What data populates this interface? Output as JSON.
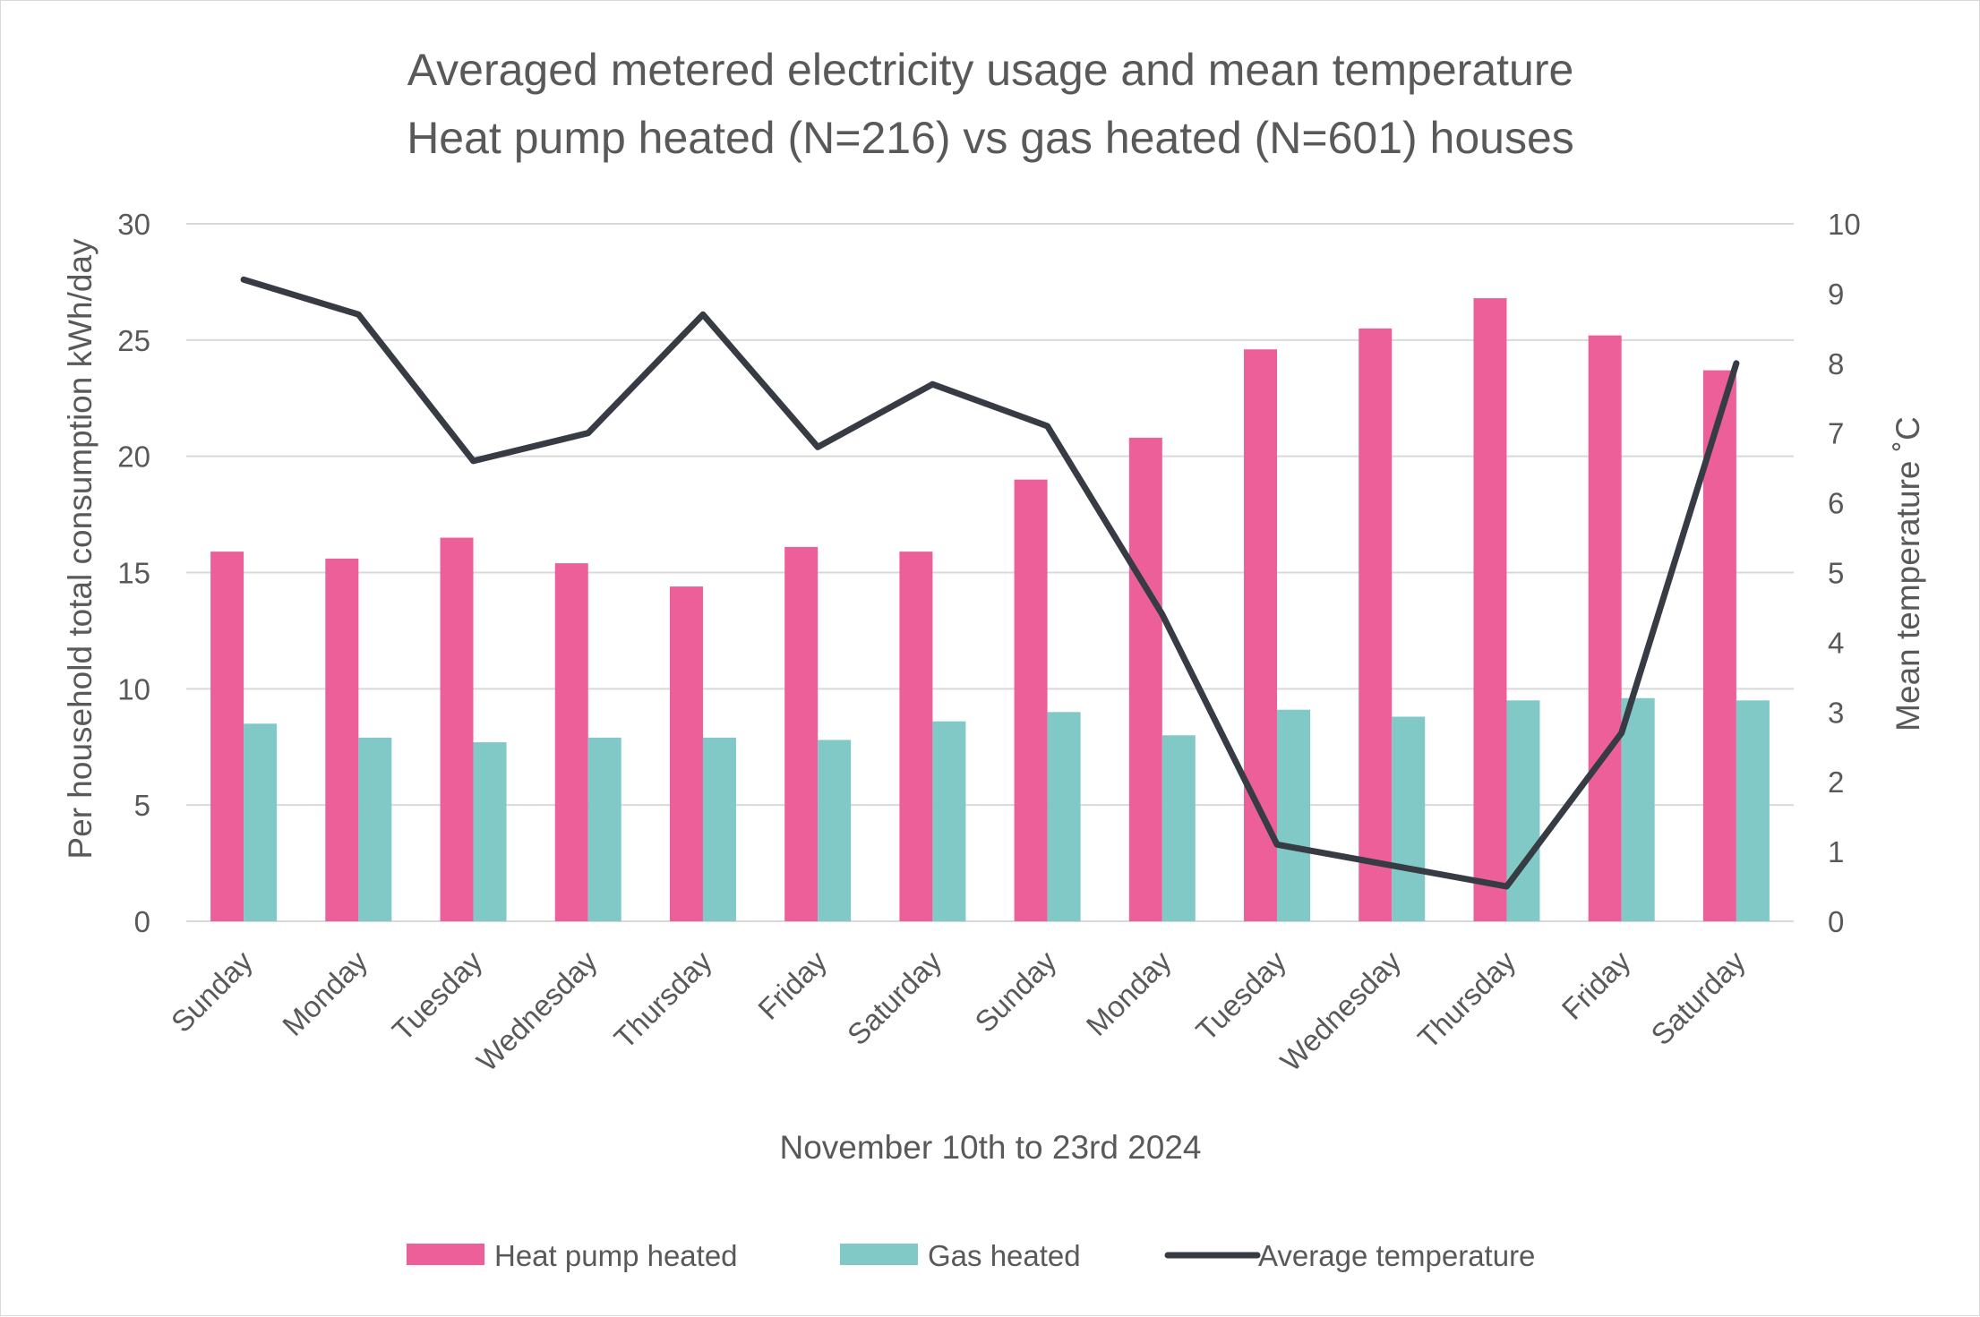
{
  "chart_data": {
    "type": "bar",
    "title": "Averaged metered electricity usage and mean temperature",
    "subtitle": "Heat pump heated (N=216) vs gas heated (N=601) houses",
    "xlabel": "November 10th to 23rd 2024",
    "ylabel": "Per household total consumption kWh/day",
    "y2label": "Mean temperature ˚C",
    "ylim": [
      0,
      30
    ],
    "y2lim": [
      0,
      10
    ],
    "yticks": [
      "0",
      "5",
      "10",
      "15",
      "20",
      "25",
      "30"
    ],
    "y2ticks": [
      "0",
      "1",
      "2",
      "3",
      "4",
      "5",
      "6",
      "7",
      "8",
      "9",
      "10"
    ],
    "grid": true,
    "legend_position": "bottom",
    "categories": [
      "Sunday",
      "Monday",
      "Tuesday",
      "Wednesday",
      "Thursday",
      "Friday",
      "Saturday",
      "Sunday",
      "Monday",
      "Tuesday",
      "Wednesday",
      "Thursday",
      "Friday",
      "Saturday"
    ],
    "series": [
      {
        "name": "Heat pump heated",
        "kind": "bar",
        "axis": "left",
        "color": "#EC5F99",
        "values": [
          15.9,
          15.6,
          16.5,
          15.4,
          14.4,
          16.1,
          15.9,
          19.0,
          20.8,
          24.6,
          25.5,
          26.8,
          25.2,
          23.7
        ]
      },
      {
        "name": "Gas heated",
        "kind": "bar",
        "axis": "left",
        "color": "#80C9C7",
        "values": [
          8.5,
          7.9,
          7.7,
          7.9,
          7.9,
          7.8,
          8.6,
          9.0,
          8.0,
          9.1,
          8.8,
          9.5,
          9.6,
          9.5
        ]
      },
      {
        "name": "Average temperature",
        "kind": "line",
        "axis": "right",
        "color": "#373B44",
        "values": [
          9.2,
          8.7,
          6.6,
          7.0,
          8.7,
          6.8,
          7.7,
          7.1,
          4.4,
          1.1,
          0.8,
          0.5,
          2.7,
          8.0
        ]
      }
    ]
  }
}
